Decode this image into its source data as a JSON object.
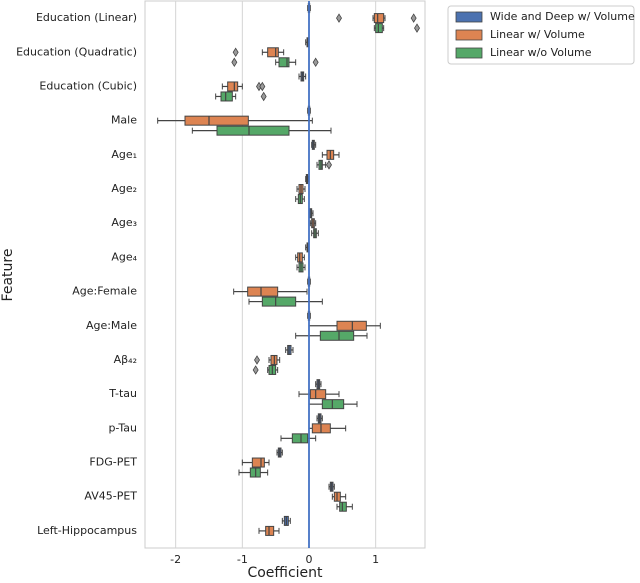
{
  "chart_data": {
    "type": "boxplot",
    "orientation": "horizontal",
    "xlabel": "Coefficient",
    "ylabel": "Feature",
    "categories": [
      "Education (Linear)",
      "Education (Quadratic)",
      "Education (Cubic)",
      "Male",
      "Age₁",
      "Age₂",
      "Age₃",
      "Age₄",
      "Age:Female",
      "Age:Male",
      "Aβ₄₂",
      "T-tau",
      "p-Tau",
      "FDG-PET",
      "AV45-PET",
      "Left-Hippocampus"
    ],
    "xlim": [
      -2.46,
      1.74
    ],
    "xticks": [
      -2,
      -1,
      0,
      1
    ],
    "grid": true,
    "reference_line": {
      "value": 0,
      "color": "#4472c4"
    },
    "legend": "outside-upper-right",
    "series": [
      {
        "name": "Wide and Deep w/ Volume",
        "color": "#4c72b0",
        "values": [
          [
            -0.02,
            -0.01,
            0,
            0.01,
            0.02
          ],
          [
            -0.05,
            -0.03,
            -0.02,
            -0.01,
            0
          ],
          [
            -0.15,
            -0.12,
            -0.1,
            -0.08,
            -0.05
          ],
          [
            -0.02,
            -0.01,
            0,
            0.01,
            0.02
          ],
          [
            0.04,
            0.05,
            0.07,
            0.08,
            0.1
          ],
          [
            -0.05,
            -0.04,
            -0.03,
            -0.02,
            -0.01
          ],
          [
            0,
            0.01,
            0.03,
            0.04,
            0.06
          ],
          [
            -0.05,
            -0.03,
            -0.02,
            -0.01,
            0
          ],
          [
            -0.02,
            -0.01,
            0,
            0.01,
            0.02
          ],
          [
            -0.02,
            -0.01,
            0,
            0.01,
            0.02
          ],
          [
            -0.35,
            -0.32,
            -0.3,
            -0.27,
            -0.24
          ],
          [
            0.1,
            0.12,
            0.14,
            0.16,
            0.18
          ],
          [
            0.12,
            0.14,
            0.16,
            0.18,
            0.2
          ],
          [
            -0.48,
            -0.46,
            -0.44,
            -0.42,
            -0.4
          ],
          [
            0.3,
            0.32,
            0.34,
            0.36,
            0.38
          ],
          [
            -0.4,
            -0.37,
            -0.34,
            -0.31,
            -0.28
          ]
        ],
        "outliers": [
          [],
          [],
          [],
          [],
          [],
          [],
          [],
          [],
          [],
          [],
          [],
          [],
          [],
          [],
          [],
          []
        ]
      },
      {
        "name": "Linear w/ Volume",
        "color": "#dd8452",
        "values": [
          [
            0.96,
            0.98,
            1.03,
            1.12,
            1.14
          ],
          [
            -0.7,
            -0.62,
            -0.5,
            -0.46,
            -0.38
          ],
          [
            -1.3,
            -1.22,
            -1.12,
            -1.07,
            -1.0
          ],
          [
            -2.27,
            -1.86,
            -1.5,
            -0.91,
            0.05
          ],
          [
            0.2,
            0.27,
            0.32,
            0.37,
            0.45
          ],
          [
            -0.18,
            -0.15,
            -0.12,
            -0.09,
            -0.06
          ],
          [
            0.02,
            0.04,
            0.06,
            0.08,
            0.1
          ],
          [
            -0.2,
            -0.17,
            -0.14,
            -0.1,
            -0.07
          ],
          [
            -1.13,
            -0.92,
            -0.72,
            -0.47,
            -0.03
          ],
          [
            0.0,
            0.42,
            0.65,
            0.86,
            1.07
          ],
          [
            -0.6,
            -0.57,
            -0.52,
            -0.48,
            -0.44
          ],
          [
            -0.15,
            0.02,
            0.1,
            0.25,
            0.45
          ],
          [
            0.0,
            0.05,
            0.18,
            0.32,
            0.55
          ],
          [
            -1.0,
            -0.85,
            -0.72,
            -0.67,
            -0.6
          ],
          [
            0.35,
            0.38,
            0.42,
            0.47,
            0.55
          ],
          [
            -0.75,
            -0.65,
            -0.6,
            -0.53,
            -0.45
          ]
        ],
        "outliers": [
          [
            0.45,
            1.57
          ],
          [
            -1.1
          ],
          [
            -0.75,
            -0.7
          ],
          [],
          [],
          [],
          [],
          [],
          [],
          [],
          [
            -0.78
          ],
          [],
          [],
          [],
          [],
          []
        ]
      },
      {
        "name": "Linear w/o Volume",
        "color": "#55a868",
        "values": [
          [
            0.98,
            1.0,
            1.04,
            1.1,
            1.12
          ],
          [
            -0.5,
            -0.45,
            -0.33,
            -0.3,
            -0.2
          ],
          [
            -1.4,
            -1.32,
            -1.25,
            -1.15,
            -1.1
          ],
          [
            -1.75,
            -1.38,
            -0.9,
            -0.3,
            0.33
          ],
          [
            0.12,
            0.15,
            0.18,
            0.2,
            0.25
          ],
          [
            -0.2,
            -0.16,
            -0.13,
            -0.1,
            -0.07
          ],
          [
            0.04,
            0.07,
            0.09,
            0.11,
            0.14
          ],
          [
            -0.18,
            -0.15,
            -0.12,
            -0.09,
            -0.06
          ],
          [
            -0.9,
            -0.7,
            -0.5,
            -0.2,
            0.2
          ],
          [
            -0.2,
            0.17,
            0.45,
            0.67,
            0.87
          ],
          [
            -0.62,
            -0.6,
            -0.55,
            -0.5,
            -0.47
          ],
          [
            0.0,
            0.2,
            0.35,
            0.52,
            0.72
          ],
          [
            -0.42,
            -0.25,
            -0.12,
            -0.02,
            0.1
          ],
          [
            -1.05,
            -0.88,
            -0.8,
            -0.73,
            -0.62
          ],
          [
            0.42,
            0.46,
            0.5,
            0.56,
            0.65
          ],
          null
        ],
        "outliers": [
          [
            1.62
          ],
          [
            -1.12,
            0.1
          ],
          [
            -0.68
          ],
          [],
          [
            0.3
          ],
          [],
          [],
          [],
          [],
          [],
          [
            -0.8
          ],
          [],
          [],
          [],
          [],
          []
        ]
      }
    ]
  }
}
